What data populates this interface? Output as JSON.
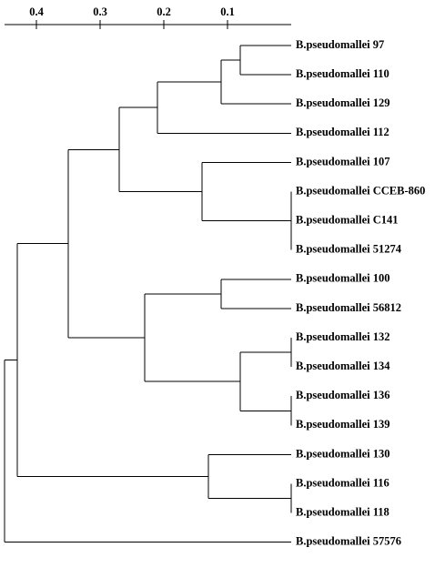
{
  "chart_data": {
    "type": "dendrogram",
    "xlim": [
      0.45,
      0
    ],
    "xticks": [
      0.4,
      0.3,
      0.2,
      0.1
    ],
    "color": "#000000",
    "tree": {
      "height": 0.45,
      "children": [
        {
          "height": 0.43,
          "children": [
            {
              "height": 0.35,
              "children": [
                {
                  "height": 0.27,
                  "children": [
                    {
                      "height": 0.21,
                      "children": [
                        {
                          "height": 0.11,
                          "children": [
                            {
                              "height": 0.08,
                              "children": [
                                {
                                  "leaf": "B.pseudomallei 97"
                                },
                                {
                                  "leaf": "B.pseudomallei 110"
                                }
                              ]
                            },
                            {
                              "leaf": "B.pseudomallei 129"
                            }
                          ]
                        },
                        {
                          "leaf": "B.pseudomallei 112"
                        }
                      ]
                    },
                    {
                      "height": 0.14,
                      "children": [
                        {
                          "leaf": "B.pseudomallei 107"
                        },
                        {
                          "height": 0,
                          "children": [
                            {
                              "leaf": "B.pseudomallei CCEB-860"
                            },
                            {
                              "leaf": "B.pseudomallei C141"
                            },
                            {
                              "leaf": "B.pseudomallei 51274"
                            }
                          ]
                        }
                      ]
                    }
                  ]
                },
                {
                  "height": 0.23,
                  "children": [
                    {
                      "height": 0.11,
                      "children": [
                        {
                          "leaf": "B.pseudomallei 100"
                        },
                        {
                          "leaf": "B.pseudomallei 56812"
                        }
                      ]
                    },
                    {
                      "height": 0.08,
                      "children": [
                        {
                          "height": 0,
                          "children": [
                            {
                              "leaf": "B.pseudomallei 132"
                            },
                            {
                              "leaf": "B.pseudomallei 134"
                            }
                          ]
                        },
                        {
                          "height": 0,
                          "children": [
                            {
                              "leaf": "B.pseudomallei 136"
                            },
                            {
                              "leaf": "B.pseudomallei 139"
                            }
                          ]
                        }
                      ]
                    }
                  ]
                }
              ]
            },
            {
              "height": 0.13,
              "children": [
                {
                  "leaf": "B.pseudomallei 130"
                },
                {
                  "height": 0,
                  "children": [
                    {
                      "leaf": "B.pseudomallei 116"
                    },
                    {
                      "leaf": "B.pseudomallei 118"
                    }
                  ]
                }
              ]
            }
          ]
        },
        {
          "leaf": "B.pseudomallei 57576"
        }
      ]
    }
  }
}
